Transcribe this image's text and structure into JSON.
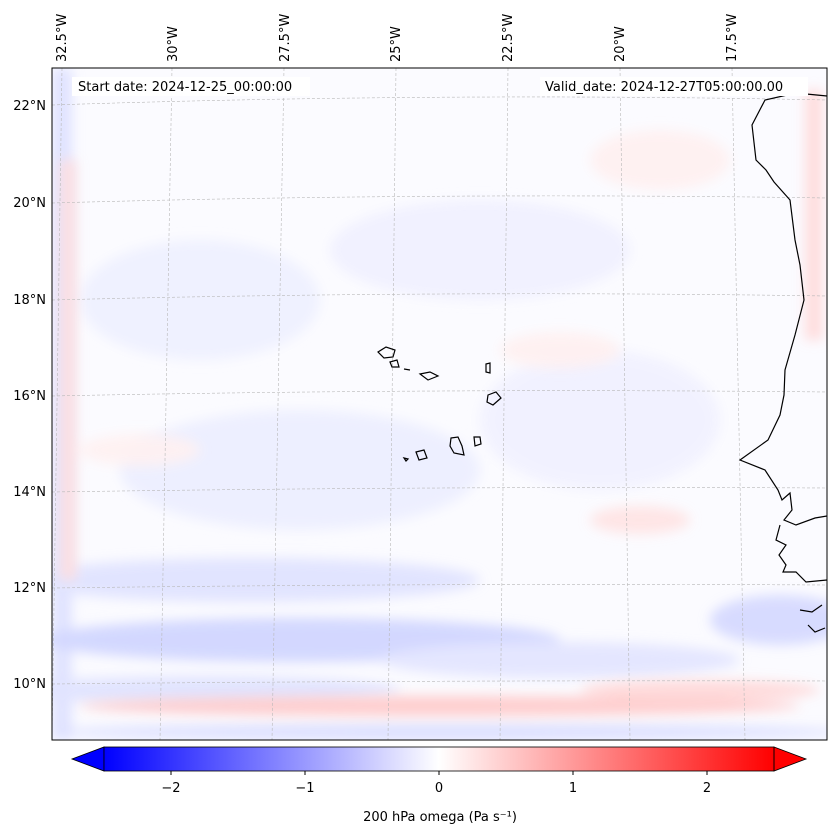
{
  "map": {
    "start_label": "Start date: 2024-12-25_00:00:00",
    "valid_label": "Valid_date: 2024-12-27T05:00:00.00",
    "lon_labels": [
      "32.5°W",
      "30°W",
      "27.5°W",
      "25°W",
      "22.5°W",
      "20°W",
      "17.5°W"
    ],
    "lat_labels": [
      "22°N",
      "20°N",
      "18°N",
      "16°N",
      "14°N",
      "12°N",
      "10°N"
    ],
    "field": "200 hPa omega",
    "region": "Cape Verde Islands and West African coast"
  },
  "colorbar": {
    "label": "200 hPa omega (Pa s⁻¹)",
    "ticks": [
      "−2",
      "−1",
      "0",
      "1",
      "2"
    ],
    "range": [
      -2.5,
      2.5
    ],
    "colormap": "bwr",
    "extend": "both"
  },
  "colors": {
    "negative": "#0000ff",
    "neutral": "#ffffff",
    "positive": "#ff0000",
    "coast": "#000000",
    "grid": "#b0b0b0"
  }
}
